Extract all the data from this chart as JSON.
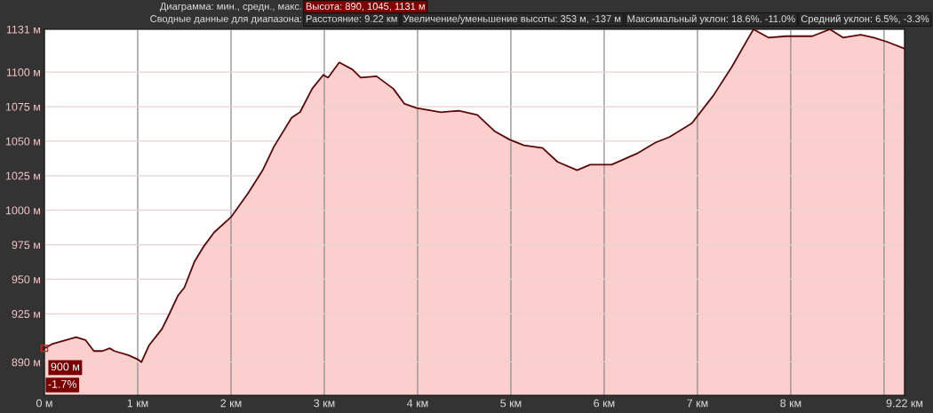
{
  "chart_data": {
    "type": "area",
    "x": [
      0,
      0.08,
      0.34,
      0.44,
      0.53,
      0.62,
      0.7,
      0.75,
      0.9,
      1.0,
      1.04,
      1.12,
      1.26,
      1.34,
      1.43,
      1.5,
      1.61,
      1.71,
      1.82,
      2.0,
      2.18,
      2.34,
      2.46,
      2.65,
      2.74,
      2.87,
      2.99,
      3.04,
      3.16,
      3.3,
      3.39,
      3.56,
      3.74,
      3.86,
      3.99,
      4.25,
      4.44,
      4.64,
      4.83,
      4.99,
      5.14,
      5.34,
      5.5,
      5.71,
      5.85,
      6.08,
      6.35,
      6.55,
      6.7,
      6.94,
      7.17,
      7.37,
      7.54,
      7.6,
      7.76,
      7.95,
      8.23,
      8.42,
      8.56,
      8.75,
      8.89,
      9.03,
      9.22
    ],
    "series": [
      {
        "color": "#fccfcf",
        "values": [
          900,
          903,
          908,
          906,
          898,
          898,
          900,
          898,
          895,
          892,
          890,
          902,
          914,
          925,
          938,
          944,
          963,
          974,
          984,
          995,
          1012,
          1029,
          1046,
          1067,
          1071,
          1088,
          1098,
          1096,
          1107,
          1102,
          1096,
          1097,
          1088,
          1077,
          1074,
          1071,
          1072,
          1069,
          1057,
          1051,
          1047,
          1045,
          1035,
          1029,
          1033,
          1033,
          1041,
          1049,
          1053,
          1063,
          1083,
          1104,
          1124,
          1131,
          1125,
          1126,
          1126,
          1131,
          1125,
          1127,
          1125,
          1122,
          1117
        ]
      }
    ],
    "xlim": [
      0,
      9.22
    ],
    "ylim": [
      866,
      1131
    ],
    "xticks": [
      {
        "value": 0,
        "label": "0 м"
      },
      {
        "value": 1,
        "label": "1 км"
      },
      {
        "value": 2,
        "label": "2 км"
      },
      {
        "value": 3,
        "label": "3 км"
      },
      {
        "value": 4,
        "label": "4 км"
      },
      {
        "value": 5,
        "label": "5 км"
      },
      {
        "value": 6,
        "label": "6 км"
      },
      {
        "value": 7,
        "label": "7 км"
      },
      {
        "value": 8,
        "label": "8 км"
      },
      {
        "value": 9,
        "label": null
      },
      {
        "value": 9.22,
        "label": "9.22 км"
      }
    ],
    "yticks": [
      {
        "value": 890,
        "label": "890 м"
      },
      {
        "value": 925,
        "label": "925 м"
      },
      {
        "value": 950,
        "label": "950 м"
      },
      {
        "value": 975,
        "label": "975 м"
      },
      {
        "value": 1000,
        "label": "1000 м"
      },
      {
        "value": 1025,
        "label": "1025 м"
      },
      {
        "value": 1050,
        "label": "1050 м"
      },
      {
        "value": 1075,
        "label": "1075 м"
      },
      {
        "value": 1100,
        "label": "1100 м"
      },
      {
        "value": 1131,
        "label": "1131 м"
      }
    ],
    "grid": true,
    "legend": false,
    "annotations": [
      "Диаграмма: мин., средн., макс.",
      "Высота: 890, 1045, 1131 м",
      "Сводные данные для диапазона:",
      "Расстояние: 9.22 км",
      "Увеличение/уменьшение высоты: 353 м, -137 м",
      "Максимальный уклон: 18.6%. -11.0%",
      "Средний уклон: 6.5%, -3.3%",
      {
        "text": "900 м",
        "x": 0,
        "y": 900
      },
      "-1.7%"
    ]
  }
}
